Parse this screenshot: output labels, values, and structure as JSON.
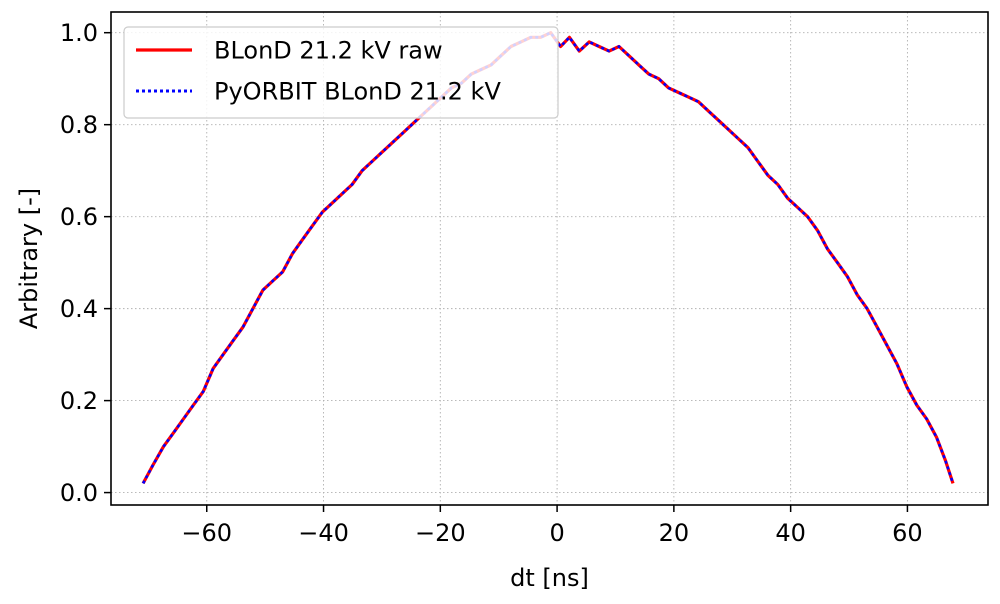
{
  "chart_data": {
    "type": "line",
    "title": "",
    "xlabel": "dt [ns]",
    "ylabel": "Arbitrary [-]",
    "xlim": [
      -76.4,
      73.8
    ],
    "ylim": [
      -0.027,
      1.045
    ],
    "xticks": [
      -60,
      -40,
      -20,
      0,
      20,
      40,
      60
    ],
    "xtick_labels": [
      "−60",
      "−40",
      "−20",
      "0",
      "20",
      "40",
      "60"
    ],
    "yticks": [
      0.0,
      0.2,
      0.4,
      0.6,
      0.8,
      1.0
    ],
    "ytick_labels": [
      "0.0",
      "0.2",
      "0.4",
      "0.6",
      "0.8",
      "1.0"
    ],
    "grid": true,
    "legend_position": "upper-left",
    "series": [
      {
        "name": "BLonD 21.2 kV raw",
        "color": "#ff0000",
        "style": "solid",
        "x": [
          -70.9,
          -69.2,
          -67.4,
          -65.7,
          -64.0,
          -62.3,
          -60.6,
          -58.9,
          -57.2,
          -55.5,
          -53.8,
          -52.1,
          -50.4,
          -48.7,
          -47.0,
          -45.3,
          -43.6,
          -41.9,
          -40.2,
          -38.5,
          -36.8,
          -35.1,
          -33.4,
          -31.7,
          -30.0,
          -28.3,
          -26.6,
          -24.9,
          -23.2,
          -21.5,
          -19.8,
          -18.1,
          -16.4,
          -14.7,
          -13.0,
          -11.3,
          -9.6,
          -7.9,
          -6.2,
          -4.5,
          -2.8,
          -1.1,
          0.6,
          2.1,
          3.8,
          5.5,
          7.2,
          8.9,
          10.6,
          12.3,
          14.0,
          15.7,
          17.4,
          19.1,
          20.8,
          22.5,
          24.2,
          25.9,
          27.6,
          29.3,
          31.0,
          32.7,
          34.4,
          36.1,
          37.8,
          39.5,
          41.2,
          42.9,
          44.6,
          46.3,
          48.0,
          49.7,
          51.4,
          53.1,
          54.8,
          56.5,
          58.2,
          59.9,
          61.6,
          63.3,
          65.0,
          66.5,
          67.8
        ],
        "y": [
          0.02,
          0.06,
          0.1,
          0.13,
          0.16,
          0.19,
          0.22,
          0.27,
          0.3,
          0.33,
          0.36,
          0.4,
          0.44,
          0.46,
          0.48,
          0.52,
          0.55,
          0.58,
          0.61,
          0.63,
          0.65,
          0.67,
          0.7,
          0.72,
          0.74,
          0.76,
          0.78,
          0.8,
          0.82,
          0.84,
          0.86,
          0.88,
          0.89,
          0.91,
          0.92,
          0.93,
          0.95,
          0.97,
          0.98,
          0.99,
          0.99,
          1.0,
          0.97,
          0.99,
          0.96,
          0.98,
          0.97,
          0.96,
          0.97,
          0.95,
          0.93,
          0.91,
          0.9,
          0.88,
          0.87,
          0.86,
          0.85,
          0.83,
          0.81,
          0.79,
          0.77,
          0.75,
          0.72,
          0.69,
          0.67,
          0.64,
          0.62,
          0.6,
          0.57,
          0.53,
          0.5,
          0.47,
          0.43,
          0.4,
          0.36,
          0.32,
          0.28,
          0.23,
          0.19,
          0.16,
          0.12,
          0.07,
          0.02
        ]
      },
      {
        "name": "PyORBIT BLonD 21.2 kV",
        "color": "#0000ff",
        "style": "dotted",
        "x": [
          -70.9,
          -69.2,
          -67.4,
          -65.7,
          -64.0,
          -62.3,
          -60.6,
          -58.9,
          -57.2,
          -55.5,
          -53.8,
          -52.1,
          -50.4,
          -48.7,
          -47.0,
          -45.3,
          -43.6,
          -41.9,
          -40.2,
          -38.5,
          -36.8,
          -35.1,
          -33.4,
          -31.7,
          -30.0,
          -28.3,
          -26.6,
          -24.9,
          -23.2,
          -21.5,
          -19.8,
          -18.1,
          -16.4,
          -14.7,
          -13.0,
          -11.3,
          -9.6,
          -7.9,
          -6.2,
          -4.5,
          -2.8,
          -1.1,
          0.6,
          2.1,
          3.8,
          5.5,
          7.2,
          8.9,
          10.6,
          12.3,
          14.0,
          15.7,
          17.4,
          19.1,
          20.8,
          22.5,
          24.2,
          25.9,
          27.6,
          29.3,
          31.0,
          32.7,
          34.4,
          36.1,
          37.8,
          39.5,
          41.2,
          42.9,
          44.6,
          46.3,
          48.0,
          49.7,
          51.4,
          53.1,
          54.8,
          56.5,
          58.2,
          59.9,
          61.6,
          63.3,
          65.0,
          66.5,
          67.8
        ],
        "y": [
          0.02,
          0.06,
          0.1,
          0.13,
          0.16,
          0.19,
          0.22,
          0.27,
          0.3,
          0.33,
          0.36,
          0.4,
          0.44,
          0.46,
          0.48,
          0.52,
          0.55,
          0.58,
          0.61,
          0.63,
          0.65,
          0.67,
          0.7,
          0.72,
          0.74,
          0.76,
          0.78,
          0.8,
          0.82,
          0.84,
          0.86,
          0.88,
          0.89,
          0.91,
          0.92,
          0.93,
          0.95,
          0.97,
          0.98,
          0.99,
          0.99,
          1.0,
          0.97,
          0.99,
          0.96,
          0.98,
          0.97,
          0.96,
          0.97,
          0.95,
          0.93,
          0.91,
          0.9,
          0.88,
          0.87,
          0.86,
          0.85,
          0.83,
          0.81,
          0.79,
          0.77,
          0.75,
          0.72,
          0.69,
          0.67,
          0.64,
          0.62,
          0.6,
          0.57,
          0.53,
          0.5,
          0.47,
          0.43,
          0.4,
          0.36,
          0.32,
          0.28,
          0.23,
          0.19,
          0.16,
          0.12,
          0.07,
          0.02
        ]
      }
    ]
  }
}
